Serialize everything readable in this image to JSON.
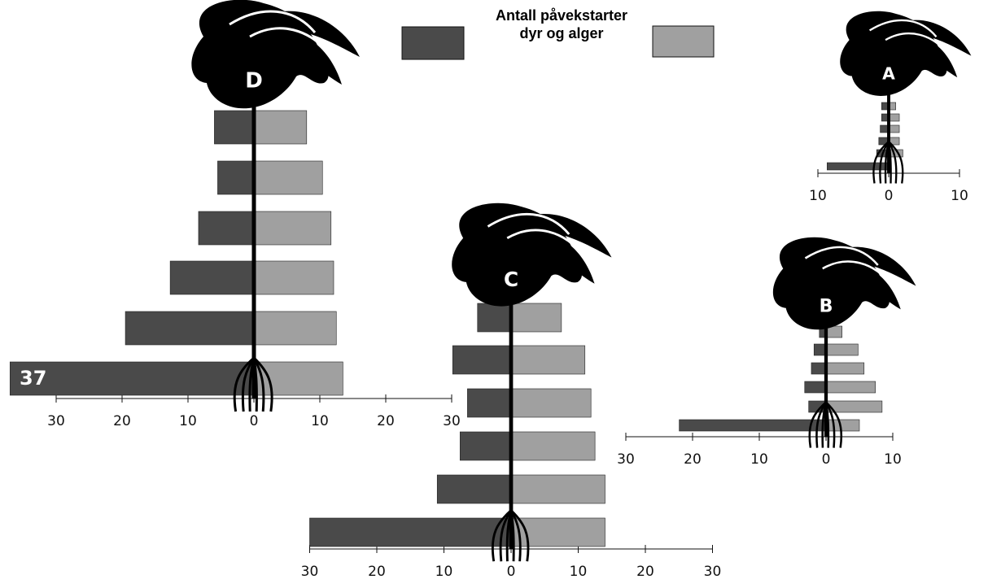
{
  "legend_lines": [
    "Antall påvekstarter",
    "dyr og alger"
  ],
  "chart_data": [
    {
      "type": "butterfly",
      "title": "D",
      "series": [
        {
          "color": "#4a4a4a",
          "values": [
            6,
            5.5,
            8.4,
            12.7,
            19.5,
            37
          ]
        },
        {
          "color": "#a0a0a0",
          "values": [
            8,
            10.4,
            11.7,
            12.1,
            12.5,
            13.5
          ]
        }
      ],
      "xlim": [
        -30,
        30
      ],
      "xticks": [
        {
          "value": -30,
          "label": "30"
        },
        {
          "value": -20,
          "label": "20"
        },
        {
          "value": -10,
          "label": "10"
        },
        0,
        10,
        20,
        30
      ]
    },
    {
      "type": "butterfly",
      "title": "C",
      "series": [
        {
          "color": "#4a4a4a",
          "values": [
            5,
            8.7,
            6.5,
            7.6,
            11,
            30
          ]
        },
        {
          "color": "#a0a0a0",
          "values": [
            7.5,
            11,
            11.9,
            12.5,
            14,
            14
          ]
        }
      ],
      "xlim": [
        -30,
        30
      ],
      "xticks": [
        {
          "value": -30,
          "label": "30"
        },
        {
          "value": -20,
          "label": "20"
        },
        {
          "value": -10,
          "label": "10"
        },
        0,
        10,
        20,
        30
      ]
    },
    {
      "type": "butterfly",
      "title": "B",
      "series": [
        {
          "color": "#4a4a4a",
          "values": [
            1,
            1.8,
            2.2,
            3.2,
            2.6,
            22
          ]
        },
        {
          "color": "#a0a0a0",
          "values": [
            2.4,
            4.8,
            5.7,
            7.4,
            8.4,
            5
          ]
        }
      ],
      "xlim": [
        -30,
        10
      ],
      "xticks": [
        {
          "value": -30,
          "label": "30"
        },
        {
          "value": -20,
          "label": "20"
        },
        {
          "value": -10,
          "label": "10"
        },
        0,
        10
      ]
    },
    {
      "type": "butterfly",
      "title": "A",
      "series": [
        {
          "color": "#4a4a4a",
          "values": [
            1,
            1,
            1.2,
            1.4,
            1.7,
            8.7
          ]
        },
        {
          "color": "#a0a0a0",
          "values": [
            1,
            1.5,
            1.5,
            1.5,
            2,
            0
          ]
        }
      ],
      "xlim": [
        -10,
        10
      ],
      "xticks": [
        {
          "value": -10,
          "label": "10"
        },
        0,
        10
      ]
    }
  ]
}
